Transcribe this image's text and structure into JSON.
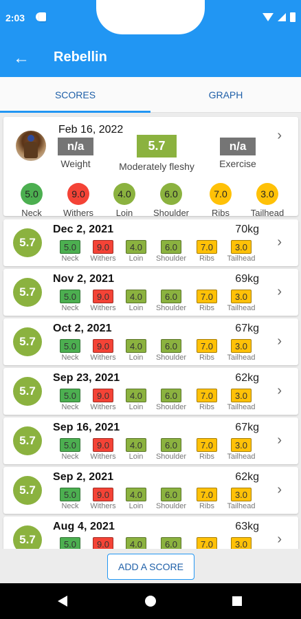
{
  "status_bar": {
    "time": "2:03"
  },
  "app_bar": {
    "title": "Rebellin",
    "back_icon": "arrow-left-icon"
  },
  "tabs": [
    {
      "label": "SCORES",
      "active": true
    },
    {
      "label": "GRAPH",
      "active": false
    }
  ],
  "colors": {
    "primary": "#2196f3",
    "green": "#4caf50",
    "red": "#f44336",
    "olive": "#8bb23f",
    "yellow": "#ffc107",
    "gray": "#757575"
  },
  "featured": {
    "date": "Feb 16, 2022",
    "weight_value": "n/a",
    "weight_label": "Weight",
    "score": "5.7",
    "score_label": "Moderately fleshy",
    "exercise_value": "n/a",
    "exercise_label": "Exercise",
    "metrics": [
      {
        "label": "Neck",
        "value": "5.0",
        "color": "green"
      },
      {
        "label": "Withers",
        "value": "9.0",
        "color": "red"
      },
      {
        "label": "Loin",
        "value": "4.0",
        "color": "olive"
      },
      {
        "label": "Shoulder",
        "value": "6.0",
        "color": "olive"
      },
      {
        "label": "Ribs",
        "value": "7.0",
        "color": "yellow"
      },
      {
        "label": "Tailhead",
        "value": "3.0",
        "color": "yellow"
      }
    ]
  },
  "rows": [
    {
      "date": "Dec 2, 2021",
      "weight": "70kg",
      "score": "5.7",
      "metrics": [
        "5.0",
        "9.0",
        "4.0",
        "6.0",
        "7.0",
        "3.0"
      ]
    },
    {
      "date": "Nov 2, 2021",
      "weight": "69kg",
      "score": "5.7",
      "metrics": [
        "5.0",
        "9.0",
        "4.0",
        "6.0",
        "7.0",
        "3.0"
      ]
    },
    {
      "date": "Oct 2, 2021",
      "weight": "67kg",
      "score": "5.7",
      "metrics": [
        "5.0",
        "9.0",
        "4.0",
        "6.0",
        "7.0",
        "3.0"
      ]
    },
    {
      "date": "Sep 23, 2021",
      "weight": "62kg",
      "score": "5.7",
      "metrics": [
        "5.0",
        "9.0",
        "4.0",
        "6.0",
        "7.0",
        "3.0"
      ]
    },
    {
      "date": "Sep 16, 2021",
      "weight": "67kg",
      "score": "5.7",
      "metrics": [
        "5.0",
        "9.0",
        "4.0",
        "6.0",
        "7.0",
        "3.0"
      ]
    },
    {
      "date": "Sep 2, 2021",
      "weight": "62kg",
      "score": "5.7",
      "metrics": [
        "5.0",
        "9.0",
        "4.0",
        "6.0",
        "7.0",
        "3.0"
      ]
    },
    {
      "date": "Aug 4, 2021",
      "weight": "63kg",
      "score": "5.7",
      "metrics": [
        "5.0",
        "9.0",
        "4.0",
        "6.0",
        "7.0",
        "3.0"
      ]
    }
  ],
  "metric_labels": [
    "Neck",
    "Withers",
    "Loin",
    "Shoulder",
    "Ribs",
    "Tailhead"
  ],
  "add_button": {
    "label": "ADD A SCORE"
  }
}
